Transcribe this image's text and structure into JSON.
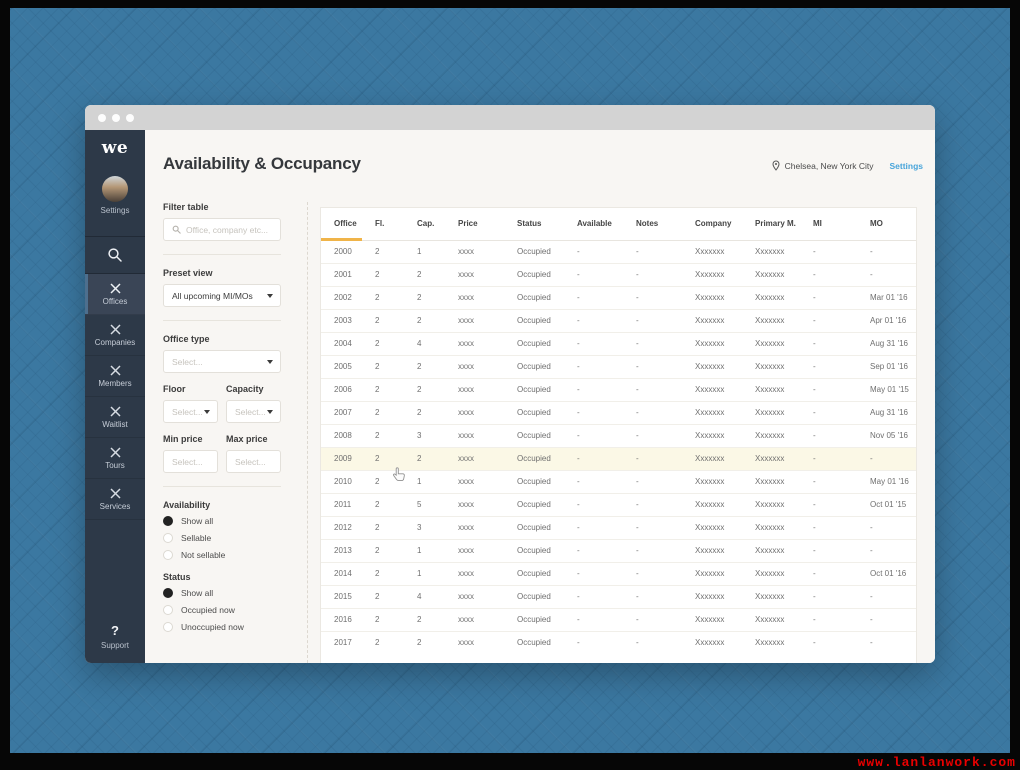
{
  "window": {
    "dots": [
      "close",
      "minimize",
      "maximize"
    ]
  },
  "sidebar": {
    "logo": "we",
    "settings_label": "Settings",
    "items": [
      {
        "label": "Offices",
        "active": true
      },
      {
        "label": "Companies",
        "active": false
      },
      {
        "label": "Members",
        "active": false
      },
      {
        "label": "Waitlist",
        "active": false
      },
      {
        "label": "Tours",
        "active": false
      },
      {
        "label": "Services",
        "active": false
      }
    ],
    "support_icon": "?",
    "support_label": "Support"
  },
  "header": {
    "title": "Availability & Occupancy",
    "location": "Chelsea, New York City",
    "settings_link": "Settings"
  },
  "filters": {
    "filter_table_label": "Filter table",
    "search_placeholder": "Office, company etc...",
    "preset_view_label": "Preset view",
    "preset_view_value": "All upcoming MI/MOs",
    "office_type_label": "Office type",
    "office_type_value": "Select...",
    "floor_label": "Floor",
    "floor_value": "Select...",
    "capacity_label": "Capacity",
    "capacity_value": "Select...",
    "min_price_label": "Min price",
    "min_price_value": "Select...",
    "max_price_label": "Max price",
    "max_price_value": "Select...",
    "availability": {
      "label": "Availability",
      "options": [
        {
          "label": "Show all",
          "selected": true
        },
        {
          "label": "Sellable",
          "selected": false
        },
        {
          "label": "Not sellable",
          "selected": false
        }
      ]
    },
    "status": {
      "label": "Status",
      "options": [
        {
          "label": "Show all",
          "selected": true
        },
        {
          "label": "Occupied now",
          "selected": false
        },
        {
          "label": "Unoccupied now",
          "selected": false
        }
      ]
    }
  },
  "table": {
    "columns": [
      "Office",
      "Fl.",
      "Cap.",
      "Price",
      "Status",
      "Available",
      "Notes",
      "Company",
      "Primary M.",
      "MI",
      "MO"
    ],
    "sorted_column": "Office",
    "highlighted_row": "2009",
    "rows": [
      [
        "2000",
        "2",
        "1",
        "xxxx",
        "Occupied",
        "-",
        "-",
        "Xxxxxxx",
        "Xxxxxxx",
        "-",
        "-"
      ],
      [
        "2001",
        "2",
        "2",
        "xxxx",
        "Occupied",
        "-",
        "-",
        "Xxxxxxx",
        "Xxxxxxx",
        "-",
        "-"
      ],
      [
        "2002",
        "2",
        "2",
        "xxxx",
        "Occupied",
        "-",
        "-",
        "Xxxxxxx",
        "Xxxxxxx",
        "-",
        "Mar 01 '16"
      ],
      [
        "2003",
        "2",
        "2",
        "xxxx",
        "Occupied",
        "-",
        "-",
        "Xxxxxxx",
        "Xxxxxxx",
        "-",
        "Apr 01 '16"
      ],
      [
        "2004",
        "2",
        "4",
        "xxxx",
        "Occupied",
        "-",
        "-",
        "Xxxxxxx",
        "Xxxxxxx",
        "-",
        "Aug 31 '16"
      ],
      [
        "2005",
        "2",
        "2",
        "xxxx",
        "Occupied",
        "-",
        "-",
        "Xxxxxxx",
        "Xxxxxxx",
        "-",
        "Sep 01 '16"
      ],
      [
        "2006",
        "2",
        "2",
        "xxxx",
        "Occupied",
        "-",
        "-",
        "Xxxxxxx",
        "Xxxxxxx",
        "-",
        "May 01 '15"
      ],
      [
        "2007",
        "2",
        "2",
        "xxxx",
        "Occupied",
        "-",
        "-",
        "Xxxxxxx",
        "Xxxxxxx",
        "-",
        "Aug 31 '16"
      ],
      [
        "2008",
        "2",
        "3",
        "xxxx",
        "Occupied",
        "-",
        "-",
        "Xxxxxxx",
        "Xxxxxxx",
        "-",
        "Nov 05 '16"
      ],
      [
        "2009",
        "2",
        "2",
        "xxxx",
        "Occupied",
        "-",
        "-",
        "Xxxxxxx",
        "Xxxxxxx",
        "-",
        "-"
      ],
      [
        "2010",
        "2",
        "1",
        "xxxx",
        "Occupied",
        "-",
        "-",
        "Xxxxxxx",
        "Xxxxxxx",
        "-",
        "May 01 '16"
      ],
      [
        "2011",
        "2",
        "5",
        "xxxx",
        "Occupied",
        "-",
        "-",
        "Xxxxxxx",
        "Xxxxxxx",
        "-",
        "Oct 01 '15"
      ],
      [
        "2012",
        "2",
        "3",
        "xxxx",
        "Occupied",
        "-",
        "-",
        "Xxxxxxx",
        "Xxxxxxx",
        "-",
        "-"
      ],
      [
        "2013",
        "2",
        "1",
        "xxxx",
        "Occupied",
        "-",
        "-",
        "Xxxxxxx",
        "Xxxxxxx",
        "-",
        "-"
      ],
      [
        "2014",
        "2",
        "1",
        "xxxx",
        "Occupied",
        "-",
        "-",
        "Xxxxxxx",
        "Xxxxxxx",
        "-",
        "Oct 01 '16"
      ],
      [
        "2015",
        "2",
        "4",
        "xxxx",
        "Occupied",
        "-",
        "-",
        "Xxxxxxx",
        "Xxxxxxx",
        "-",
        "-"
      ],
      [
        "2016",
        "2",
        "2",
        "xxxx",
        "Occupied",
        "-",
        "-",
        "Xxxxxxx",
        "Xxxxxxx",
        "-",
        "-"
      ],
      [
        "2017",
        "2",
        "2",
        "xxxx",
        "Occupied",
        "-",
        "-",
        "Xxxxxxx",
        "Xxxxxxx",
        "-",
        "-"
      ]
    ]
  },
  "watermark": "www.lanlanwork.com",
  "colors": {
    "backdrop_blue": "#3b78a1",
    "sidebar_navy": "#2d3948",
    "active_item": "#3a4556",
    "active_accent": "#4d6f8e",
    "sort_indicator_yellow": "#f0b449",
    "highlight_row": "#fbf8e6",
    "link_blue": "#47a4da",
    "titlebar_gray": "#d3d3d3"
  }
}
